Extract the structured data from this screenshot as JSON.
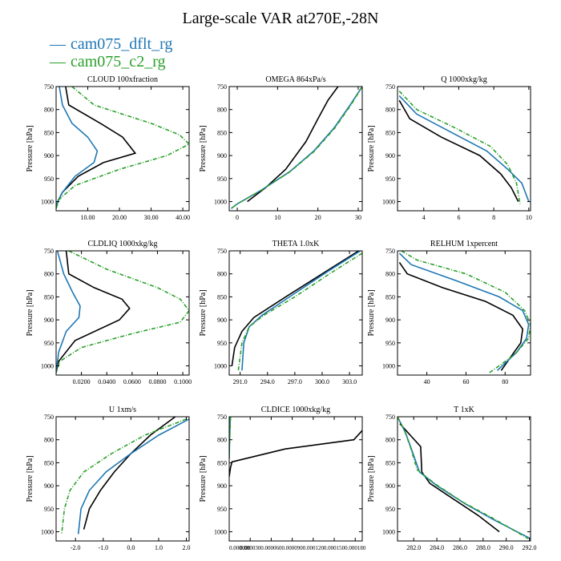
{
  "title": "Large-scale VAR at270E,-28N",
  "legend": [
    {
      "label": "cam075_dflt_rg",
      "color": "#1f77b4"
    },
    {
      "label": "cam075_c2_rg",
      "color": "#2ca02c"
    }
  ],
  "colors": {
    "ref": "#000000"
  },
  "chart_data": [
    {
      "type": "line",
      "title": "CLOUD  100xfraction",
      "ylabel": "Pressure [hPa]",
      "xlim": [
        0,
        42
      ],
      "ylim": [
        750,
        1020
      ],
      "xticks": [
        10,
        20,
        30,
        40
      ],
      "xticklabels": [
        "10.00",
        "20.00",
        "30.00",
        "40.00"
      ],
      "yticks": [
        750,
        800,
        850,
        900,
        950,
        1000
      ],
      "yticklabels": [
        "750",
        "800",
        "850",
        "900",
        "950",
        "1000"
      ],
      "series": [
        {
          "role": "ref",
          "x": [
            3,
            4,
            14,
            21,
            25,
            15,
            7,
            2,
            0.5,
            0
          ],
          "p": [
            750,
            790,
            830,
            860,
            895,
            915,
            945,
            980,
            1000,
            1015
          ]
        },
        {
          "name": "cam075_dflt_rg",
          "x": [
            1,
            2,
            5,
            10,
            13,
            12,
            6,
            2,
            0.5,
            0
          ],
          "p": [
            750,
            790,
            830,
            860,
            890,
            915,
            945,
            980,
            1000,
            1015
          ]
        },
        {
          "name": "cam075_c2_rg",
          "x": [
            5,
            12,
            30,
            39,
            42,
            35,
            20,
            6,
            1,
            0
          ],
          "p": [
            750,
            790,
            830,
            855,
            875,
            900,
            930,
            965,
            995,
            1015
          ]
        }
      ]
    },
    {
      "type": "line",
      "title": "OMEGA  864xPa/s",
      "ylabel": "Pressure [hPa]",
      "xlim": [
        -2,
        31
      ],
      "ylim": [
        750,
        1020
      ],
      "xticks": [
        0,
        10,
        20,
        30
      ],
      "xticklabels": [
        "0",
        "10",
        "20",
        "30"
      ],
      "yticks": [
        750,
        800,
        850,
        900,
        950,
        1000
      ],
      "yticklabels": [
        "750",
        "800",
        "850",
        "900",
        "950",
        "1000"
      ],
      "series": [
        {
          "role": "ref",
          "x": [
            25,
            22.5,
            20,
            17,
            12,
            7,
            2.5
          ],
          "p": [
            750,
            780,
            820,
            870,
            930,
            970,
            1000
          ]
        },
        {
          "name": "cam075_dflt_rg",
          "x": [
            31,
            28,
            24,
            19,
            13,
            6,
            0,
            -1.5
          ],
          "p": [
            750,
            790,
            840,
            890,
            935,
            975,
            1005,
            1015
          ]
        },
        {
          "name": "cam075_c2_rg",
          "x": [
            31,
            28.2,
            24.2,
            19.2,
            13.1,
            6,
            0,
            -1.5
          ],
          "p": [
            750,
            790,
            840,
            890,
            935,
            975,
            1005,
            1015
          ]
        }
      ]
    },
    {
      "type": "line",
      "title": "Q  1000xkg/kg",
      "ylabel": "Pressure [hPa]",
      "xlim": [
        2.5,
        10.1
      ],
      "ylim": [
        750,
        1020
      ],
      "xticks": [
        4,
        6,
        8,
        10
      ],
      "xticklabels": [
        "4",
        "6",
        "8",
        "10"
      ],
      "yticks": [
        750,
        800,
        850,
        900,
        950,
        1000
      ],
      "yticklabels": [
        "750",
        "800",
        "850",
        "900",
        "950",
        "1000"
      ],
      "series": [
        {
          "role": "ref",
          "x": [
            2.6,
            3.2,
            5.0,
            7.2,
            8.4,
            9.0,
            9.4
          ],
          "p": [
            780,
            820,
            860,
            900,
            940,
            970,
            1000
          ]
        },
        {
          "name": "cam075_dflt_rg",
          "x": [
            2.6,
            3.6,
            5.6,
            7.6,
            8.8,
            9.6,
            10.0
          ],
          "p": [
            770,
            810,
            850,
            890,
            930,
            960,
            1000
          ]
        },
        {
          "name": "cam075_c2_rg",
          "x": [
            2.6,
            3.6,
            5.8,
            7.8,
            8.8,
            9.3,
            9.5
          ],
          "p": [
            760,
            800,
            840,
            880,
            920,
            960,
            1005
          ]
        }
      ]
    },
    {
      "type": "line",
      "title": "CLDLIQ  1000xkg/kg",
      "ylabel": "Pressure [hPa]",
      "xlim": [
        0,
        0.105
      ],
      "ylim": [
        750,
        1020
      ],
      "xticks": [
        0.02,
        0.04,
        0.06,
        0.08,
        0.1
      ],
      "xticklabels": [
        "0.0200",
        "0.0400",
        "0.0600",
        "0.0800",
        "0.1000"
      ],
      "yticks": [
        750,
        800,
        850,
        900,
        950,
        1000
      ],
      "yticklabels": [
        "750",
        "800",
        "850",
        "900",
        "950",
        "1000"
      ],
      "series": [
        {
          "role": "ref",
          "x": [
            0.008,
            0.01,
            0.03,
            0.052,
            0.058,
            0.05,
            0.015,
            0.002,
            0
          ],
          "p": [
            750,
            800,
            830,
            855,
            875,
            900,
            945,
            990,
            1015
          ]
        },
        {
          "name": "cam075_dflt_rg",
          "x": [
            0.001,
            0.006,
            0.013,
            0.019,
            0.018,
            0.008,
            0.002,
            0
          ],
          "p": [
            750,
            800,
            840,
            870,
            895,
            925,
            970,
            1015
          ]
        },
        {
          "name": "cam075_c2_rg",
          "x": [
            0.01,
            0.04,
            0.08,
            0.098,
            0.105,
            0.098,
            0.06,
            0.02,
            0.003,
            0
          ],
          "p": [
            750,
            790,
            830,
            855,
            880,
            905,
            930,
            960,
            990,
            1015
          ]
        }
      ]
    },
    {
      "type": "line",
      "title": "THETA  1.0xK",
      "ylabel": "Pressure [hPa]",
      "xlim": [
        289.8,
        304.4
      ],
      "ylim": [
        750,
        1020
      ],
      "xticks": [
        291,
        294,
        297,
        300,
        303
      ],
      "xticklabels": [
        "291.0",
        "294.0",
        "297.0",
        "300.0",
        "303.0"
      ],
      "yticks": [
        750,
        800,
        850,
        900,
        950,
        1000
      ],
      "yticklabels": [
        "750",
        "800",
        "850",
        "900",
        "950",
        "1000"
      ],
      "series": [
        {
          "role": "ref",
          "x": [
            304,
            300,
            296,
            292.5,
            291.2,
            290.4,
            290.1
          ],
          "p": [
            750,
            800,
            850,
            895,
            925,
            960,
            1000
          ]
        },
        {
          "name": "cam075_dflt_rg",
          "x": [
            304.2,
            300.6,
            296.8,
            293.4,
            292.0,
            291.4,
            291.2
          ],
          "p": [
            750,
            795,
            845,
            890,
            915,
            950,
            1010
          ]
        },
        {
          "name": "cam075_c2_rg",
          "x": [
            304.4,
            300.8,
            297.0,
            293.6,
            292.0,
            291.2,
            290.8
          ],
          "p": [
            755,
            800,
            850,
            890,
            915,
            950,
            1010
          ]
        }
      ]
    },
    {
      "type": "line",
      "title": "RELHUM  1xpercent",
      "ylabel": "Pressure [hPa]",
      "xlim": [
        25,
        93
      ],
      "ylim": [
        750,
        1020
      ],
      "xticks": [
        40,
        60,
        80
      ],
      "xticklabels": [
        "40",
        "60",
        "80"
      ],
      "yticks": [
        750,
        800,
        850,
        900,
        950,
        1000
      ],
      "yticklabels": [
        "750",
        "800",
        "850",
        "900",
        "950",
        "1000"
      ],
      "series": [
        {
          "role": "ref",
          "x": [
            26,
            30,
            48,
            70,
            84,
            89,
            88,
            83,
            78
          ],
          "p": [
            775,
            800,
            830,
            860,
            890,
            920,
            950,
            980,
            1010
          ]
        },
        {
          "name": "cam075_dflt_rg",
          "x": [
            26,
            32,
            55,
            77,
            89,
            92,
            91,
            86,
            76
          ],
          "p": [
            755,
            780,
            815,
            850,
            880,
            910,
            940,
            970,
            1010
          ]
        },
        {
          "name": "cam075_c2_rg",
          "x": [
            27,
            35,
            60,
            80,
            90,
            93,
            92,
            85,
            72
          ],
          "p": [
            750,
            770,
            800,
            840,
            880,
            910,
            940,
            975,
            1015
          ]
        }
      ]
    },
    {
      "type": "line",
      "title": "U  1xm/s",
      "ylabel": "Pressure [hPa]",
      "xlim": [
        -2.7,
        2.1
      ],
      "ylim": [
        750,
        1020
      ],
      "xticks": [
        -2,
        -1,
        0,
        1,
        2
      ],
      "xticklabels": [
        "-2.0",
        "-1.0",
        "0.0",
        "1.0",
        "2.0"
      ],
      "yticks": [
        750,
        800,
        850,
        900,
        950,
        1000
      ],
      "yticklabels": [
        "750",
        "800",
        "850",
        "900",
        "950",
        "1000"
      ],
      "series": [
        {
          "role": "ref",
          "x": [
            1.6,
            0.7,
            0,
            -0.6,
            -1.1,
            -1.5,
            -1.7
          ],
          "p": [
            750,
            790,
            830,
            870,
            910,
            950,
            995
          ]
        },
        {
          "name": "cam075_dflt_rg",
          "x": [
            2.1,
            1.0,
            0,
            -0.9,
            -1.5,
            -1.8,
            -1.9
          ],
          "p": [
            755,
            790,
            830,
            870,
            910,
            950,
            1005
          ]
        },
        {
          "name": "cam075_c2_rg",
          "x": [
            2.0,
            0.5,
            -0.7,
            -1.7,
            -2.2,
            -2.4,
            -2.5
          ],
          "p": [
            755,
            790,
            830,
            870,
            910,
            950,
            1005
          ]
        }
      ]
    },
    {
      "type": "line",
      "title": "CLDICE  1000xkg/kg",
      "ylabel": "Pressure [hPa]",
      "xlim": [
        0,
        0.00019
      ],
      "ylim": [
        750,
        1020
      ],
      "xticks": [
        0,
        3e-05,
        6e-05,
        9e-05,
        0.00012,
        0.00015,
        0.00018
      ],
      "xticklabels": [
        "0.000000",
        "0.000030",
        "0.000060",
        "0.000090",
        "0.000120",
        "0.000150",
        "0.000180"
      ],
      "yticks": [
        750,
        800,
        850,
        900,
        950,
        1000
      ],
      "yticklabels": [
        "750",
        "800",
        "850",
        "900",
        "950",
        "1000"
      ],
      "series": [
        {
          "role": "ref",
          "x": [
            0.00019,
            0.000178,
            8e-05,
            4e-06,
            2e-06,
            0
          ],
          "p": [
            780,
            800,
            820,
            848,
            860,
            880
          ]
        },
        {
          "name": "cam075_dflt_rg",
          "x": [
            1.5e-06,
            5e-07,
            0
          ],
          "p": [
            750,
            800,
            840
          ]
        },
        {
          "name": "cam075_c2_rg",
          "x": [
            2e-06,
            7e-07,
            0
          ],
          "p": [
            750,
            800,
            840
          ]
        }
      ]
    },
    {
      "type": "line",
      "title": "T  1xK",
      "ylabel": "Pressure [hPa]",
      "xlim": [
        280.6,
        292.1
      ],
      "ylim": [
        750,
        1020
      ],
      "xticks": [
        282,
        284,
        286,
        288,
        290,
        292
      ],
      "xticklabels": [
        "282.0",
        "284.0",
        "286.0",
        "288.0",
        "290.0",
        "292.0"
      ],
      "yticks": [
        750,
        800,
        850,
        900,
        950,
        1000
      ],
      "yticklabels": [
        "750",
        "800",
        "850",
        "900",
        "950",
        "1000"
      ],
      "series": [
        {
          "role": "ref",
          "x": [
            280.8,
            281.7,
            282.6,
            282.7,
            283.4,
            285.5,
            287.6,
            289.4
          ],
          "p": [
            765,
            790,
            815,
            870,
            895,
            930,
            965,
            1000
          ]
        },
        {
          "name": "cam075_dflt_rg",
          "x": [
            280.7,
            281.3,
            281.8,
            282.5,
            284.0,
            286.5,
            289.0,
            292.1
          ],
          "p": [
            755,
            785,
            820,
            870,
            900,
            940,
            975,
            1015
          ]
        },
        {
          "name": "cam075_c2_rg",
          "x": [
            280.6,
            281.2,
            281.7,
            282.3,
            283.8,
            286.2,
            288.8,
            291.9
          ],
          "p": [
            750,
            780,
            815,
            865,
            895,
            935,
            970,
            1015
          ]
        }
      ]
    }
  ]
}
